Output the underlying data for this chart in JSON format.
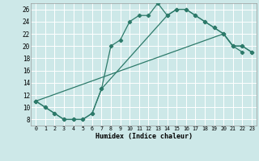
{
  "xlabel": "Humidex (Indice chaleur)",
  "bg_color": "#cde8e8",
  "grid_color": "#ffffff",
  "line_color": "#2d7a6a",
  "xlim": [
    -0.5,
    23.5
  ],
  "ylim": [
    7,
    27
  ],
  "xticks": [
    0,
    1,
    2,
    3,
    4,
    5,
    6,
    7,
    8,
    9,
    10,
    11,
    12,
    13,
    14,
    15,
    16,
    17,
    18,
    19,
    20,
    21,
    22,
    23
  ],
  "yticks": [
    8,
    10,
    12,
    14,
    16,
    18,
    20,
    22,
    24,
    26
  ],
  "line1_x": [
    0,
    1,
    2,
    3,
    4,
    5,
    6,
    7,
    8,
    9,
    10,
    11,
    12,
    13,
    14,
    15,
    16,
    17,
    18,
    19,
    20,
    21,
    22
  ],
  "line1_y": [
    11,
    10,
    9,
    8,
    8,
    8,
    9,
    13,
    20,
    21,
    24,
    25,
    25,
    27,
    25,
    26,
    26,
    25,
    24,
    23,
    22,
    20,
    19
  ],
  "line2_x": [
    0,
    1,
    2,
    3,
    4,
    5,
    6,
    7,
    14,
    15,
    16,
    17,
    18,
    19,
    20,
    21,
    22,
    23
  ],
  "line2_y": [
    11,
    10,
    9,
    8,
    8,
    8,
    9,
    13,
    25,
    26,
    26,
    25,
    24,
    23,
    22,
    20,
    20,
    19
  ],
  "line3_x": [
    0,
    20,
    21,
    22,
    23
  ],
  "line3_y": [
    11,
    22,
    20,
    20,
    19
  ]
}
